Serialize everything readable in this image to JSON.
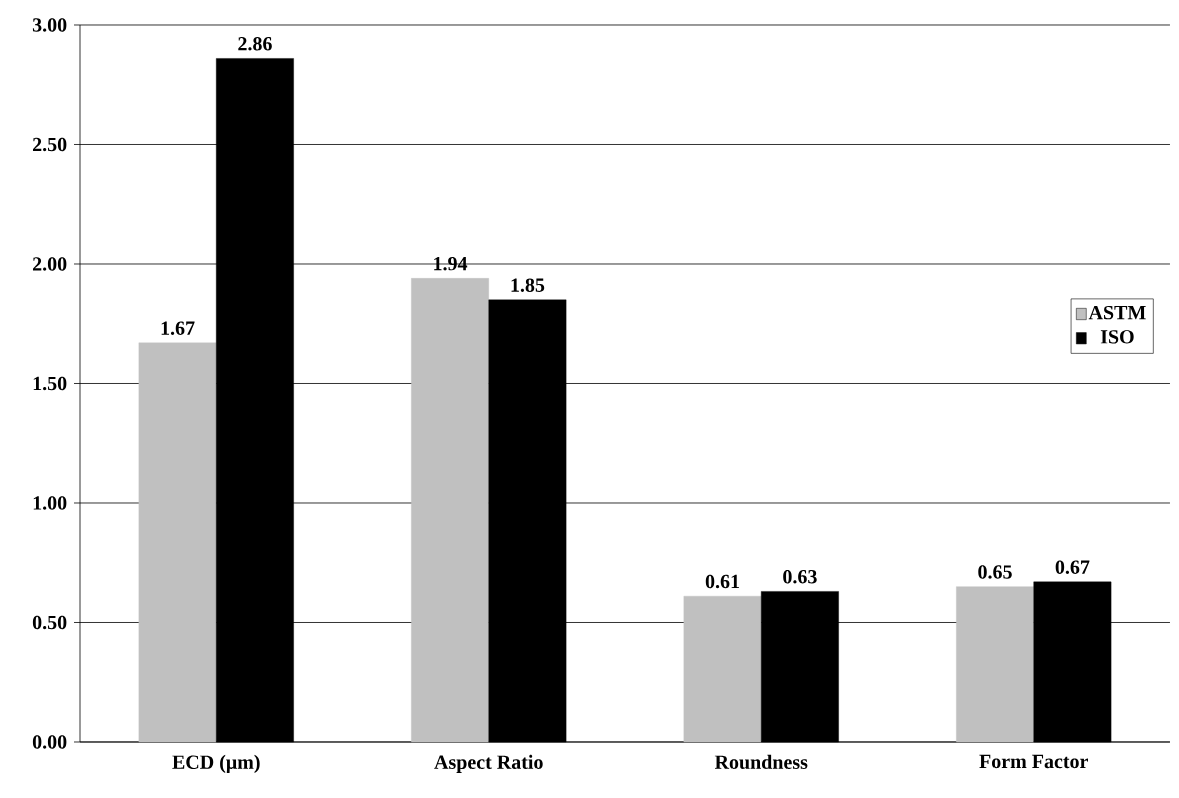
{
  "chart_data": {
    "type": "bar",
    "categories": [
      "ECD (μm)",
      "Aspect Ratio",
      "Roundness",
      "Form Factor"
    ],
    "series": [
      {
        "name": "ASTM",
        "color": "#c0c0c0",
        "values": [
          1.67,
          1.94,
          0.61,
          0.65
        ]
      },
      {
        "name": "ISO",
        "color": "#000000",
        "values": [
          2.86,
          1.85,
          0.63,
          0.67
        ]
      }
    ],
    "ylim": [
      0,
      3
    ],
    "yticks": [
      {
        "value": 0,
        "label": "0.00"
      },
      {
        "value": 0.5,
        "label": "0.50"
      },
      {
        "value": 1,
        "label": "1.00"
      },
      {
        "value": 1.5,
        "label": "1.50"
      },
      {
        "value": 2,
        "label": "2.00"
      },
      {
        "value": 2.5,
        "label": "2.50"
      },
      {
        "value": 3,
        "label": "3.00"
      }
    ],
    "grid": "y",
    "legend": "right",
    "data_labels": true
  }
}
